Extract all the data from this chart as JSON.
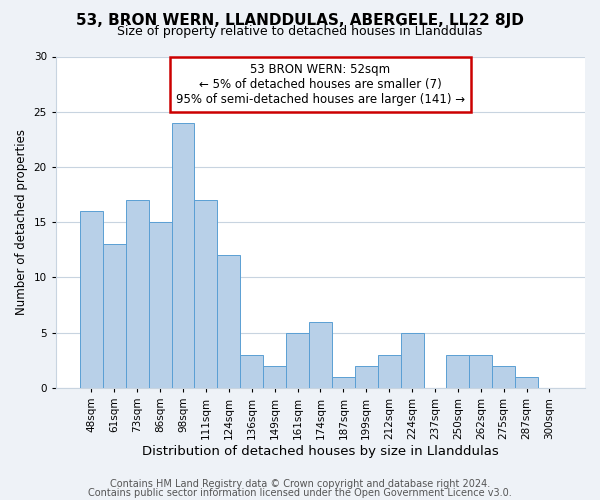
{
  "title": "53, BRON WERN, LLANDDULAS, ABERGELE, LL22 8JD",
  "subtitle": "Size of property relative to detached houses in Llanddulas",
  "xlabel": "Distribution of detached houses by size in Llanddulas",
  "ylabel": "Number of detached properties",
  "bar_labels": [
    "48sqm",
    "61sqm",
    "73sqm",
    "86sqm",
    "98sqm",
    "111sqm",
    "124sqm",
    "136sqm",
    "149sqm",
    "161sqm",
    "174sqm",
    "187sqm",
    "199sqm",
    "212sqm",
    "224sqm",
    "237sqm",
    "250sqm",
    "262sqm",
    "275sqm",
    "287sqm",
    "300sqm"
  ],
  "bar_values": [
    16,
    13,
    17,
    15,
    24,
    17,
    12,
    3,
    2,
    5,
    6,
    1,
    2,
    3,
    5,
    0,
    3,
    3,
    2,
    1,
    0
  ],
  "bar_color": "#b8d0e8",
  "bar_edge_color": "#5a9fd4",
  "annotation_box_text": "53 BRON WERN: 52sqm\n← 5% of detached houses are smaller (7)\n95% of semi-detached houses are larger (141) →",
  "annotation_box_edge_color": "#cc0000",
  "ylim": [
    0,
    30
  ],
  "yticks": [
    0,
    5,
    10,
    15,
    20,
    25,
    30
  ],
  "footer_line1": "Contains HM Land Registry data © Crown copyright and database right 2024.",
  "footer_line2": "Contains public sector information licensed under the Open Government Licence v3.0.",
  "background_color": "#eef2f7",
  "plot_background_color": "#ffffff",
  "grid_color": "#c8d4e0",
  "title_fontsize": 11,
  "subtitle_fontsize": 9,
  "xlabel_fontsize": 9.5,
  "ylabel_fontsize": 8.5,
  "tick_fontsize": 7.5,
  "footer_fontsize": 7
}
